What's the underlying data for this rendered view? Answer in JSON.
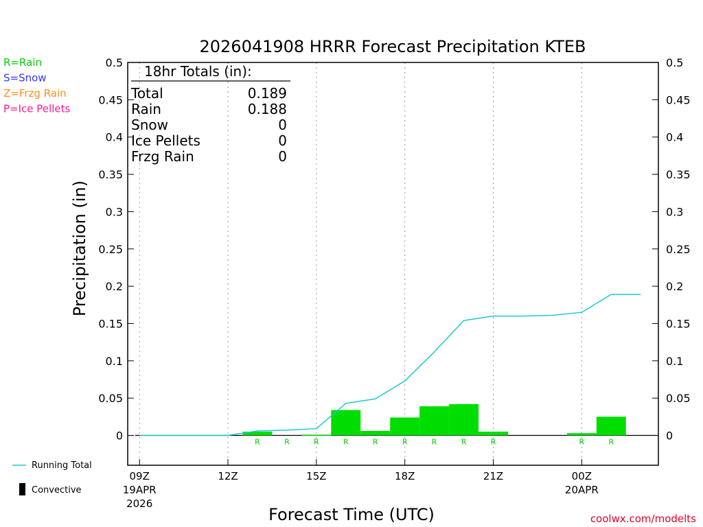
{
  "chart_data": {
    "type": "bar",
    "title": "2026041908 HRRR Forecast Precipitation KTEB",
    "xlabel": "Forecast Time (UTC)",
    "ylabel": "Precipitation (in)",
    "ylim": [
      -0.04,
      0.5
    ],
    "xlim": [
      8.6,
      26.6
    ],
    "yticks": [
      "0",
      "0.05",
      "0.1",
      "0.15",
      "0.2",
      "0.25",
      "0.3",
      "0.35",
      "0.4",
      "0.45",
      "0.5"
    ],
    "xticks": [
      {
        "x": 9,
        "label": "09Z",
        "label2": "19APR",
        "label3": "2026"
      },
      {
        "x": 12,
        "label": "12Z",
        "label2": "",
        "label3": ""
      },
      {
        "x": 15,
        "label": "15Z",
        "label2": "",
        "label3": ""
      },
      {
        "x": 18,
        "label": "18Z",
        "label2": "",
        "label3": ""
      },
      {
        "x": 21,
        "label": "21Z",
        "label2": "",
        "label3": ""
      },
      {
        "x": 24,
        "label": "00Z",
        "label2": "20APR",
        "label3": ""
      }
    ],
    "bars": [
      {
        "x": 13,
        "value": 0.005,
        "type": "R"
      },
      {
        "x": 14,
        "value": 0.0,
        "type": "R"
      },
      {
        "x": 15,
        "value": 0.001,
        "type": "R"
      },
      {
        "x": 16,
        "value": 0.034,
        "type": "R"
      },
      {
        "x": 17,
        "value": 0.006,
        "type": "R"
      },
      {
        "x": 18,
        "value": 0.024,
        "type": "R"
      },
      {
        "x": 19,
        "value": 0.039,
        "type": "R"
      },
      {
        "x": 20,
        "value": 0.042,
        "type": "R"
      },
      {
        "x": 21,
        "value": 0.005,
        "type": "R"
      },
      {
        "x": 22,
        "value": 0.0,
        "type": ""
      },
      {
        "x": 23,
        "value": 0.0,
        "type": ""
      },
      {
        "x": 24,
        "value": 0.003,
        "type": "R"
      },
      {
        "x": 25,
        "value": 0.025,
        "type": "R"
      },
      {
        "x": 26,
        "value": 0.0,
        "type": ""
      }
    ],
    "running_total": {
      "x": [
        9,
        10,
        11,
        12,
        13,
        14,
        15,
        16,
        17,
        18,
        19,
        20,
        21,
        22,
        23,
        24,
        25,
        26
      ],
      "y": [
        0,
        0,
        0,
        0,
        0.006,
        0.007,
        0.009,
        0.043,
        0.049,
        0.073,
        0.112,
        0.154,
        0.16,
        0.16,
        0.161,
        0.165,
        0.189,
        0.189
      ]
    },
    "totals_box": {
      "header": "18hr Totals (in):",
      "rows": [
        {
          "label": "Total",
          "value": "0.189"
        },
        {
          "label": "Rain",
          "value": "0.188"
        },
        {
          "label": "Snow",
          "value": "0"
        },
        {
          "label": "Ice Pellets",
          "value": "0"
        },
        {
          "label": "Frzg Rain",
          "value": "0"
        }
      ]
    },
    "type_legend": [
      {
        "text": "R=Rain",
        "color": "#00cc00"
      },
      {
        "text": "S=Snow",
        "color": "#3333ff"
      },
      {
        "text": "Z=Frzg Rain",
        "color": "#ff8c1a"
      },
      {
        "text": "P=Ice Pellets",
        "color": "#ff1a8c"
      }
    ],
    "series_legend": {
      "running_total": "Running Total",
      "convective": "Convective"
    },
    "credit": "coolwx.com/modelts",
    "colors": {
      "bar": "#00dd00",
      "line": "#1ec8d2",
      "rain_code": "#00cc00",
      "grid": "#999999",
      "credit": "#e0002a"
    }
  }
}
